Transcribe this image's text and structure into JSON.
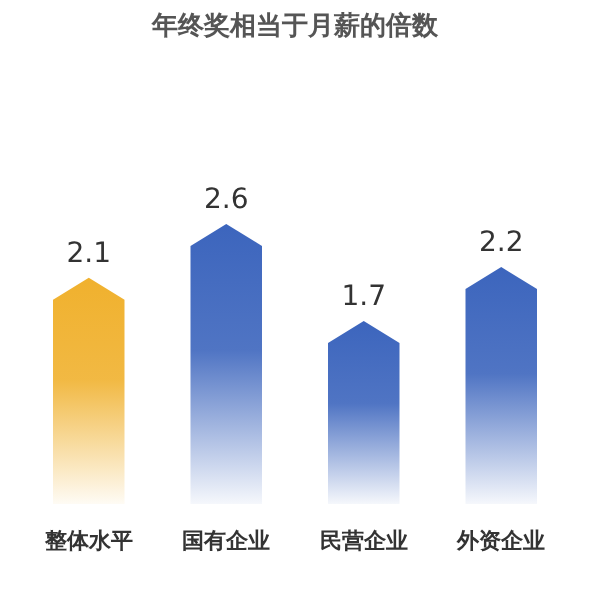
{
  "chart_data": {
    "type": "bar",
    "title": "年终奖相当于月薪的倍数",
    "categories": [
      "整体水平",
      "国有企业",
      "民营企业",
      "外资企业"
    ],
    "values": [
      2.1,
      2.6,
      1.7,
      2.2
    ],
    "colors": [
      "#f0b12e",
      "#3c65bd",
      "#3c65bd",
      "#3c65bd"
    ],
    "data_labels": true
  }
}
